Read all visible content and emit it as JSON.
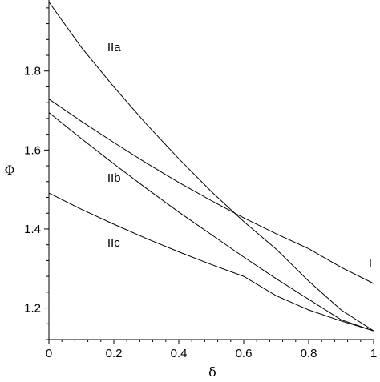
{
  "chart_data": {
    "type": "line",
    "xlabel": "δ",
    "ylabel": "Φ",
    "xlim": [
      0,
      1
    ],
    "ylim": [
      1.12,
      1.98
    ],
    "xticks": [
      0,
      0.2,
      0.4,
      0.6,
      0.8,
      1
    ],
    "xtick_labels": [
      "0",
      "0.2",
      "0.4",
      "0.6",
      "0.8",
      "1"
    ],
    "yticks": [
      1.2,
      1.4,
      1.6,
      1.8
    ],
    "ytick_labels": [
      "1.2",
      "1.4",
      "1.6",
      "1.8"
    ],
    "grid": false,
    "legend": "none",
    "series": [
      {
        "name": "IIa",
        "x": [
          0,
          0.1,
          0.2,
          0.3,
          0.4,
          0.5,
          0.6,
          0.7,
          0.8,
          0.9,
          1
        ],
        "y": [
          1.975,
          1.86,
          1.76,
          1.666,
          1.578,
          1.495,
          1.419,
          1.349,
          1.268,
          1.195,
          1.142
        ]
      },
      {
        "name": "I",
        "x": [
          0,
          0.1,
          0.2,
          0.3,
          0.4,
          0.5,
          0.6,
          0.7,
          0.8,
          0.9,
          1
        ],
        "y": [
          1.729,
          1.673,
          1.619,
          1.567,
          1.518,
          1.472,
          1.428,
          1.388,
          1.35,
          1.303,
          1.262
        ]
      },
      {
        "name": "IIb",
        "x": [
          0,
          0.1,
          0.2,
          0.3,
          0.4,
          0.5,
          0.6,
          0.7,
          0.8,
          0.9,
          1
        ],
        "y": [
          1.695,
          1.629,
          1.565,
          1.503,
          1.443,
          1.386,
          1.329,
          1.274,
          1.222,
          1.17,
          1.142
        ]
      },
      {
        "name": "IIc",
        "x": [
          0,
          0.1,
          0.2,
          0.3,
          0.4,
          0.5,
          0.6,
          0.7,
          0.8,
          0.9,
          1
        ],
        "y": [
          1.491,
          1.45,
          1.412,
          1.376,
          1.342,
          1.31,
          1.28,
          1.231,
          1.195,
          1.167,
          1.142
        ]
      }
    ],
    "annotations": [
      {
        "text": "IIa",
        "x": 0.18,
        "y": 1.85
      },
      {
        "text": "IIb",
        "x": 0.18,
        "y": 1.52
      },
      {
        "text": "IIc",
        "x": 0.18,
        "y": 1.355
      },
      {
        "text": "I",
        "x": 0.985,
        "y": 1.305
      }
    ]
  }
}
